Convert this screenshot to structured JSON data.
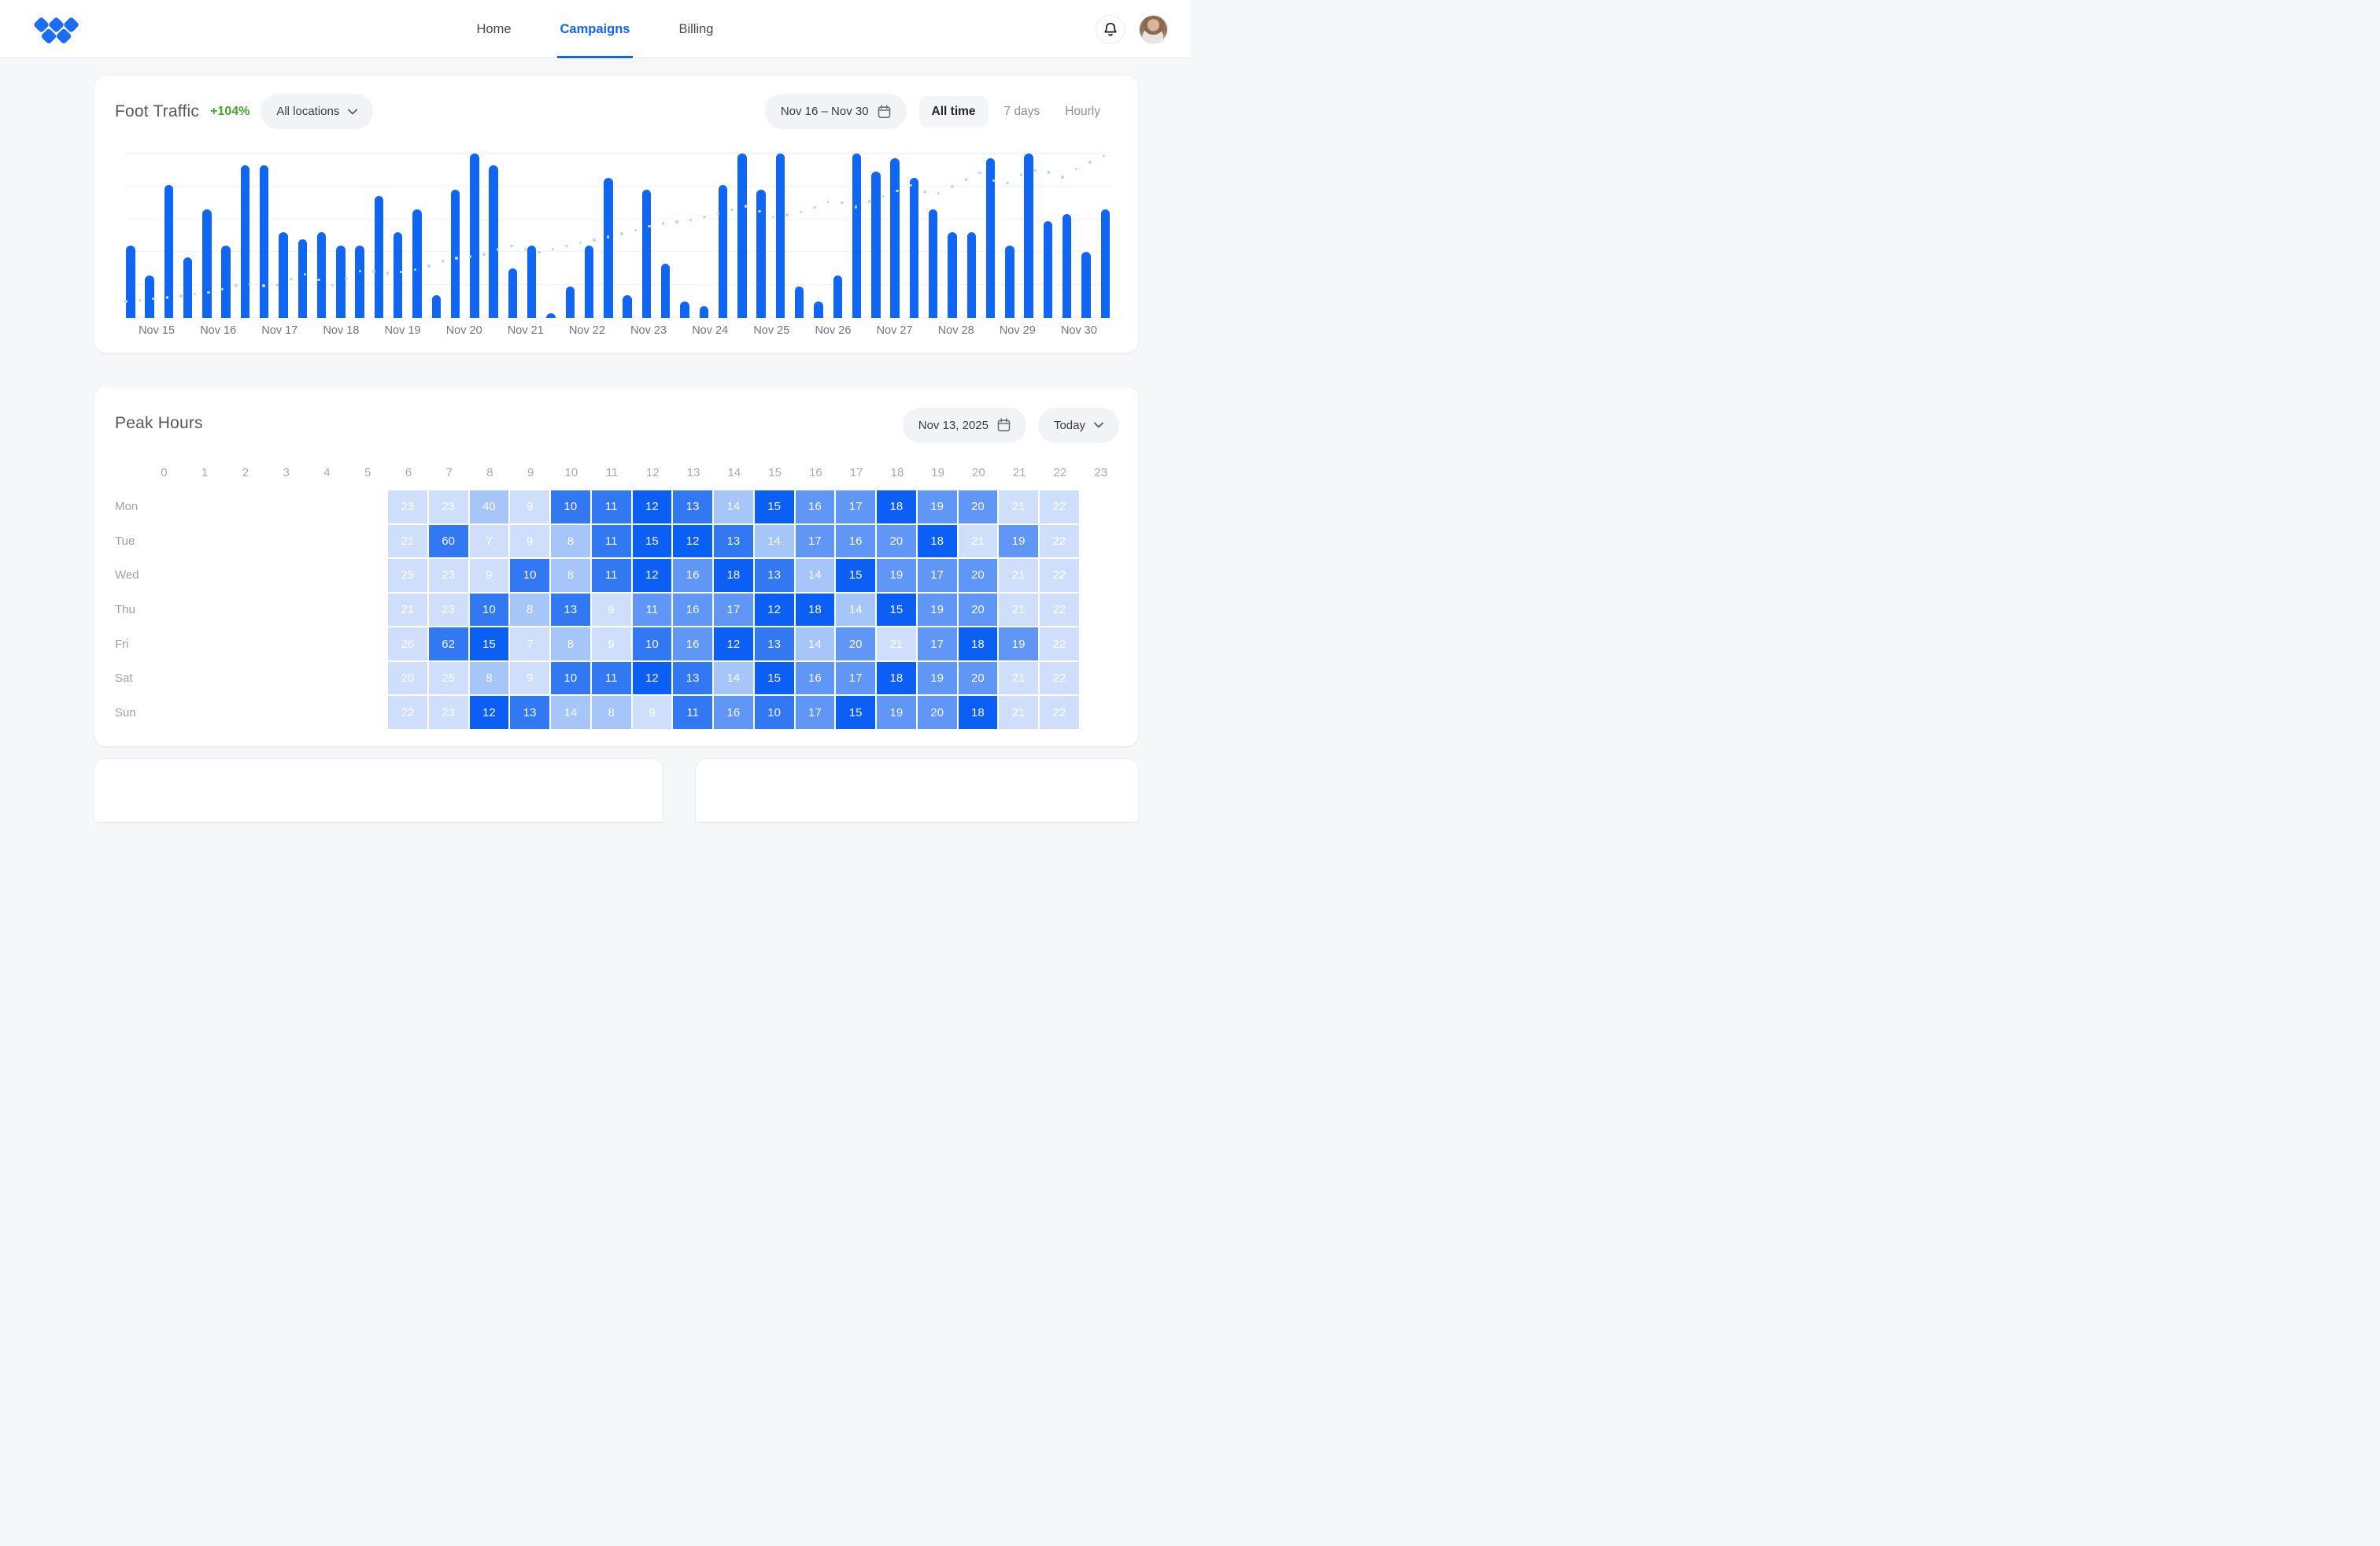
{
  "nav": {
    "tabs": [
      {
        "label": "Home",
        "active": false
      },
      {
        "label": "Campaigns",
        "active": true
      },
      {
        "label": "Billing",
        "active": false
      }
    ]
  },
  "icons": {
    "logo": "five-diamond-mark",
    "bell": "bell-outline",
    "chevron": "chevron-down",
    "calendar": "calendar-outline"
  },
  "colors": {
    "accent": "#1065f2",
    "positive_delta": "#48a62d",
    "bar": "#1065f2",
    "trend_dots": "#b5dcec",
    "page_bg": "#f6f7f9",
    "card_bg": "#ffffff",
    "muted_label": "#9ba1a9"
  },
  "foot_traffic": {
    "title": "Foot Traffic",
    "delta": "+104%",
    "locations_label": "All locations",
    "date_range": "Nov 16 – Nov 30",
    "range_options": [
      "All time",
      "7 days",
      "Hourly"
    ],
    "selected_range": "All time"
  },
  "peak_hours": {
    "title": "Peak Hours",
    "date": "Nov 13, 2025",
    "mode_label": "Today"
  },
  "chart_data": [
    {
      "type": "bar",
      "title": "Foot Traffic",
      "xlabel": "",
      "ylabel": "",
      "ylim": [
        0,
        100
      ],
      "grid": true,
      "x_labels": [
        "Nov 15",
        "Nov 16",
        "Nov 17",
        "Nov 18",
        "Nov 19",
        "Nov 20",
        "Nov 21",
        "Nov 22",
        "Nov 23",
        "Nov 24",
        "Nov 25",
        "Nov 26",
        "Nov 27",
        "Nov 28",
        "Nov 29",
        "Nov 30"
      ],
      "bar_color": "#1065f2",
      "values_pct": [
        44,
        26,
        81,
        37,
        66,
        44,
        93,
        93,
        52,
        48,
        52,
        44,
        44,
        74,
        52,
        66,
        14,
        78,
        100,
        93,
        30,
        44,
        3,
        19,
        44,
        85,
        14,
        78,
        33,
        10,
        7,
        81,
        100,
        78,
        100,
        19,
        10,
        26,
        100,
        89,
        97,
        85,
        66,
        52,
        52,
        97,
        44,
        100,
        59,
        63,
        40,
        66
      ],
      "trend_color": "#b5dcec",
      "trend_points_pct": [
        [
          0,
          10
        ],
        [
          5,
          13
        ],
        [
          9,
          16
        ],
        [
          12,
          21
        ],
        [
          15,
          19
        ],
        [
          18,
          27
        ],
        [
          21,
          20
        ],
        [
          24,
          29
        ],
        [
          27,
          27
        ],
        [
          30,
          30
        ],
        [
          33,
          36
        ],
        [
          36,
          38
        ],
        [
          39,
          44
        ],
        [
          42,
          40
        ],
        [
          45,
          44
        ],
        [
          48,
          48
        ],
        [
          51,
          52
        ],
        [
          54,
          57
        ],
        [
          57,
          59
        ],
        [
          60,
          63
        ],
        [
          63,
          68
        ],
        [
          66,
          61
        ],
        [
          69,
          65
        ],
        [
          72,
          72
        ],
        [
          74,
          67
        ],
        [
          77,
          74
        ],
        [
          80,
          81
        ],
        [
          82,
          74
        ],
        [
          85,
          83
        ],
        [
          87,
          89
        ],
        [
          89,
          80
        ],
        [
          91,
          87
        ],
        [
          93,
          91
        ],
        [
          95,
          85
        ],
        [
          97,
          92
        ],
        [
          100,
          100
        ]
      ]
    },
    {
      "type": "heatmap",
      "title": "Peak Hours",
      "hour_labels": [
        0,
        1,
        2,
        3,
        4,
        5,
        6,
        7,
        8,
        9,
        10,
        11,
        12,
        13,
        14,
        15,
        16,
        17,
        18,
        19,
        20,
        21,
        22,
        23
      ],
      "start_hour": 6,
      "days": [
        "Mon",
        "Tue",
        "Wed",
        "Thu",
        "Fri",
        "Sat",
        "Sun"
      ],
      "values": [
        [
          23,
          23,
          40,
          9,
          10,
          11,
          12,
          13,
          14,
          15,
          16,
          17,
          18,
          19,
          20,
          21,
          22
        ],
        [
          21,
          60,
          7,
          9,
          8,
          11,
          15,
          12,
          13,
          14,
          17,
          16,
          20,
          18,
          21,
          19,
          22
        ],
        [
          25,
          23,
          9,
          10,
          8,
          11,
          12,
          16,
          18,
          13,
          14,
          15,
          19,
          17,
          20,
          21,
          22
        ],
        [
          21,
          23,
          10,
          8,
          13,
          9,
          11,
          16,
          17,
          12,
          18,
          14,
          15,
          19,
          20,
          21,
          22
        ],
        [
          26,
          62,
          15,
          7,
          8,
          9,
          10,
          16,
          12,
          13,
          14,
          20,
          21,
          17,
          18,
          19,
          22
        ],
        [
          20,
          25,
          8,
          9,
          10,
          11,
          12,
          13,
          14,
          15,
          16,
          17,
          18,
          19,
          20,
          21,
          22
        ],
        [
          22,
          23,
          12,
          13,
          14,
          8,
          9,
          11,
          16,
          10,
          17,
          15,
          19,
          20,
          18,
          21,
          22
        ]
      ],
      "levels": [
        [
          1,
          1,
          2,
          1,
          4,
          4,
          5,
          4,
          2,
          5,
          3,
          3,
          5,
          3,
          3,
          1,
          1
        ],
        [
          1,
          4,
          1,
          1,
          2,
          4,
          5,
          5,
          4,
          2,
          3,
          3,
          3,
          5,
          1,
          3,
          1
        ],
        [
          1,
          1,
          1,
          4,
          2,
          4,
          5,
          3,
          5,
          4,
          2,
          5,
          3,
          3,
          3,
          1,
          1
        ],
        [
          1,
          1,
          4,
          2,
          4,
          1,
          3,
          3,
          3,
          5,
          5,
          2,
          5,
          3,
          3,
          1,
          1
        ],
        [
          1,
          4,
          5,
          1,
          2,
          1,
          4,
          3,
          5,
          4,
          2,
          3,
          1,
          3,
          5,
          3,
          1
        ],
        [
          1,
          1,
          2,
          1,
          4,
          4,
          5,
          4,
          2,
          5,
          3,
          3,
          5,
          3,
          3,
          1,
          1
        ],
        [
          1,
          1,
          5,
          4,
          2,
          2,
          1,
          4,
          3,
          4,
          3,
          5,
          3,
          3,
          5,
          1,
          1
        ]
      ],
      "palette": {
        "1": "#cfdffb",
        "2": "#a6c5f8",
        "3": "#6096f5",
        "4": "#3278f2",
        "5": "#0b5ff5"
      }
    }
  ]
}
